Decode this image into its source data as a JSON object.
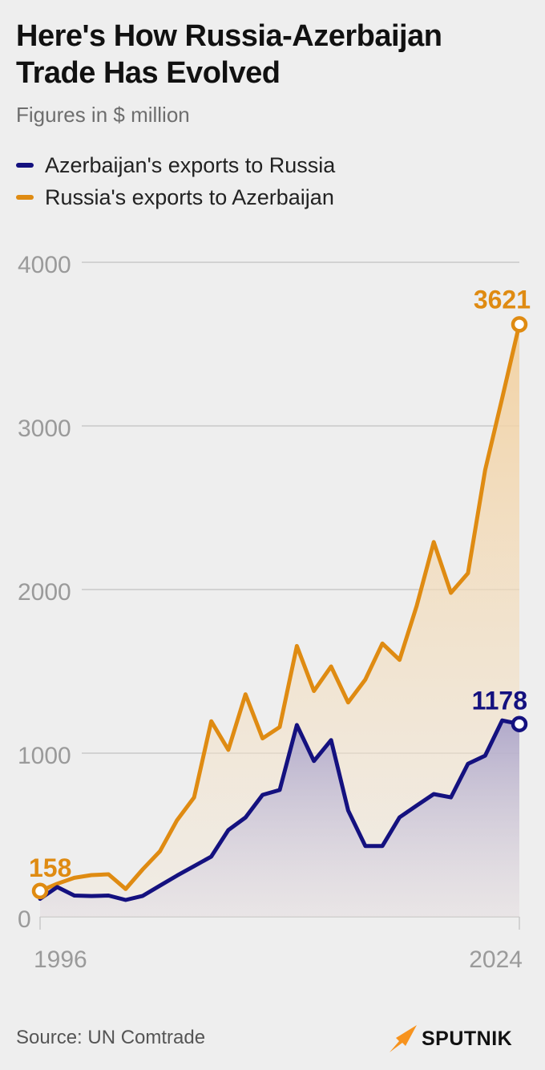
{
  "header": {
    "title": "Here's How Russia-Azerbaijan Trade Has Evolved",
    "subtitle": "Figures in $ million"
  },
  "colors": {
    "azerbaijan": "#14117f",
    "russia": "#df8b12",
    "grid": "#c9c9c9",
    "axis_text": "#9a9a9a",
    "brand_accent": "#f7931e"
  },
  "chart_data": {
    "type": "area",
    "title": "Here's How Russia-Azerbaijan Trade Has Evolved",
    "subtitle": "Figures in $ million",
    "xlabel": "",
    "ylabel": "",
    "x": [
      1996,
      1997,
      1998,
      1999,
      2000,
      2001,
      2002,
      2003,
      2004,
      2005,
      2006,
      2007,
      2008,
      2009,
      2010,
      2011,
      2012,
      2013,
      2014,
      2015,
      2016,
      2017,
      2018,
      2019,
      2020,
      2021,
      2022,
      2023,
      2024
    ],
    "x_tick_labels": [
      "1996",
      "2024"
    ],
    "ylim": [
      0,
      4000
    ],
    "y_ticks": [
      0,
      1000,
      2000,
      3000,
      4000
    ],
    "y_tick_labels": [
      "0",
      "1000",
      "2000",
      "3000",
      "4000"
    ],
    "grid": true,
    "legend_position": "top-left",
    "series": [
      {
        "name": "Azerbaijan's exports to Russia",
        "color": "#14117f",
        "values": [
          110,
          182,
          130,
          127,
          130,
          103,
          128,
          190,
          252,
          310,
          368,
          530,
          607,
          745,
          775,
          1172,
          952,
          1080,
          650,
          433,
          433,
          608,
          680,
          750,
          730,
          935,
          985,
          1200,
          1178
        ],
        "end_label": "1178"
      },
      {
        "name": "Russia's exports to Azerbaijan",
        "color": "#df8b12",
        "values": [
          158,
          202,
          238,
          255,
          260,
          170,
          290,
          400,
          590,
          730,
          1195,
          1020,
          1360,
          1090,
          1160,
          1655,
          1380,
          1530,
          1310,
          1450,
          1670,
          1570,
          1900,
          2290,
          1980,
          2100,
          2730,
          3170,
          3621
        ],
        "start_label": "158",
        "end_label": "3621"
      }
    ]
  },
  "footer": {
    "source": "Source: UN Comtrade",
    "brand": "SPUTNIK",
    "brand_logo_icon": "sputnik-arrow-icon"
  }
}
